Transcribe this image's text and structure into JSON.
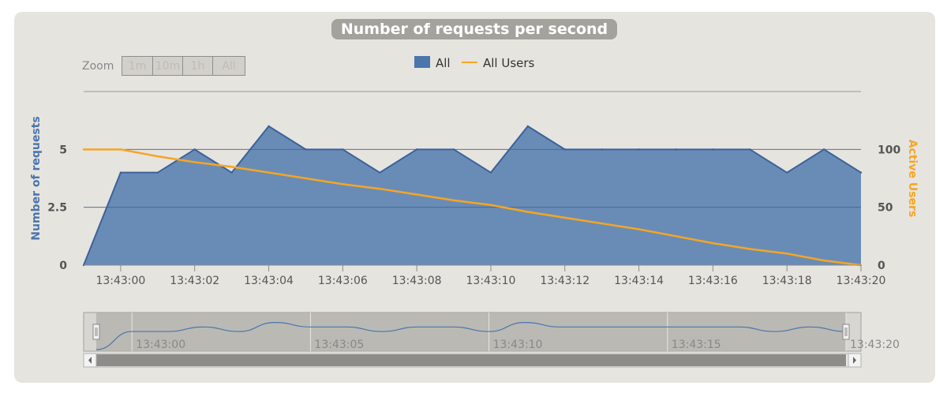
{
  "chart_data": {
    "type": "area",
    "title": "Number of requests per second",
    "legend": [
      {
        "label": "All",
        "color": "#4a75ad",
        "marker": "square"
      },
      {
        "label": "All Users",
        "color": "#f5a623",
        "marker": "line"
      }
    ],
    "legend_position": "top-center",
    "ylabel_left": "Number of requests",
    "ylabel_right": "Active Users",
    "yticks_left": [
      "0",
      "2.5",
      "5"
    ],
    "yticks_right": [
      "0",
      "50",
      "100"
    ],
    "ylim_left": [
      0,
      7.5
    ],
    "ylim_right": [
      0,
      150
    ],
    "xticks": [
      "13:43:00",
      "13:43:02",
      "13:43:04",
      "13:43:06",
      "13:43:08",
      "13:43:10",
      "13:43:12",
      "13:43:14",
      "13:43:16",
      "13:43:18",
      "13:43:20"
    ],
    "x_seconds": [
      -1,
      0,
      1,
      2,
      3,
      4,
      5,
      6,
      7,
      8,
      9,
      10,
      11,
      12,
      13,
      14,
      15,
      16,
      17,
      18,
      19,
      20
    ],
    "series": [
      {
        "name": "All",
        "axis": "left",
        "values": [
          0,
          4,
          4,
          5,
          4,
          6,
          5,
          5,
          4,
          5,
          5,
          4,
          6,
          5,
          5,
          5,
          5,
          5,
          5,
          4,
          5,
          4
        ]
      },
      {
        "name": "All Users",
        "axis": "right",
        "values": [
          100,
          100,
          94,
          89,
          85,
          80,
          75,
          70,
          66,
          61,
          56,
          52,
          46,
          41,
          36,
          31,
          25,
          19,
          14,
          10,
          4,
          0
        ]
      }
    ],
    "grid": true,
    "navigator": {
      "ticks": [
        "13:43:00",
        "13:43:05",
        "13:43:10",
        "13:43:15",
        "13:43:20"
      ],
      "tick_seconds": [
        0,
        5,
        10,
        15,
        20
      ]
    }
  },
  "zoom": {
    "label": "Zoom",
    "buttons": [
      "1m",
      "10m",
      "1h",
      "All"
    ]
  }
}
